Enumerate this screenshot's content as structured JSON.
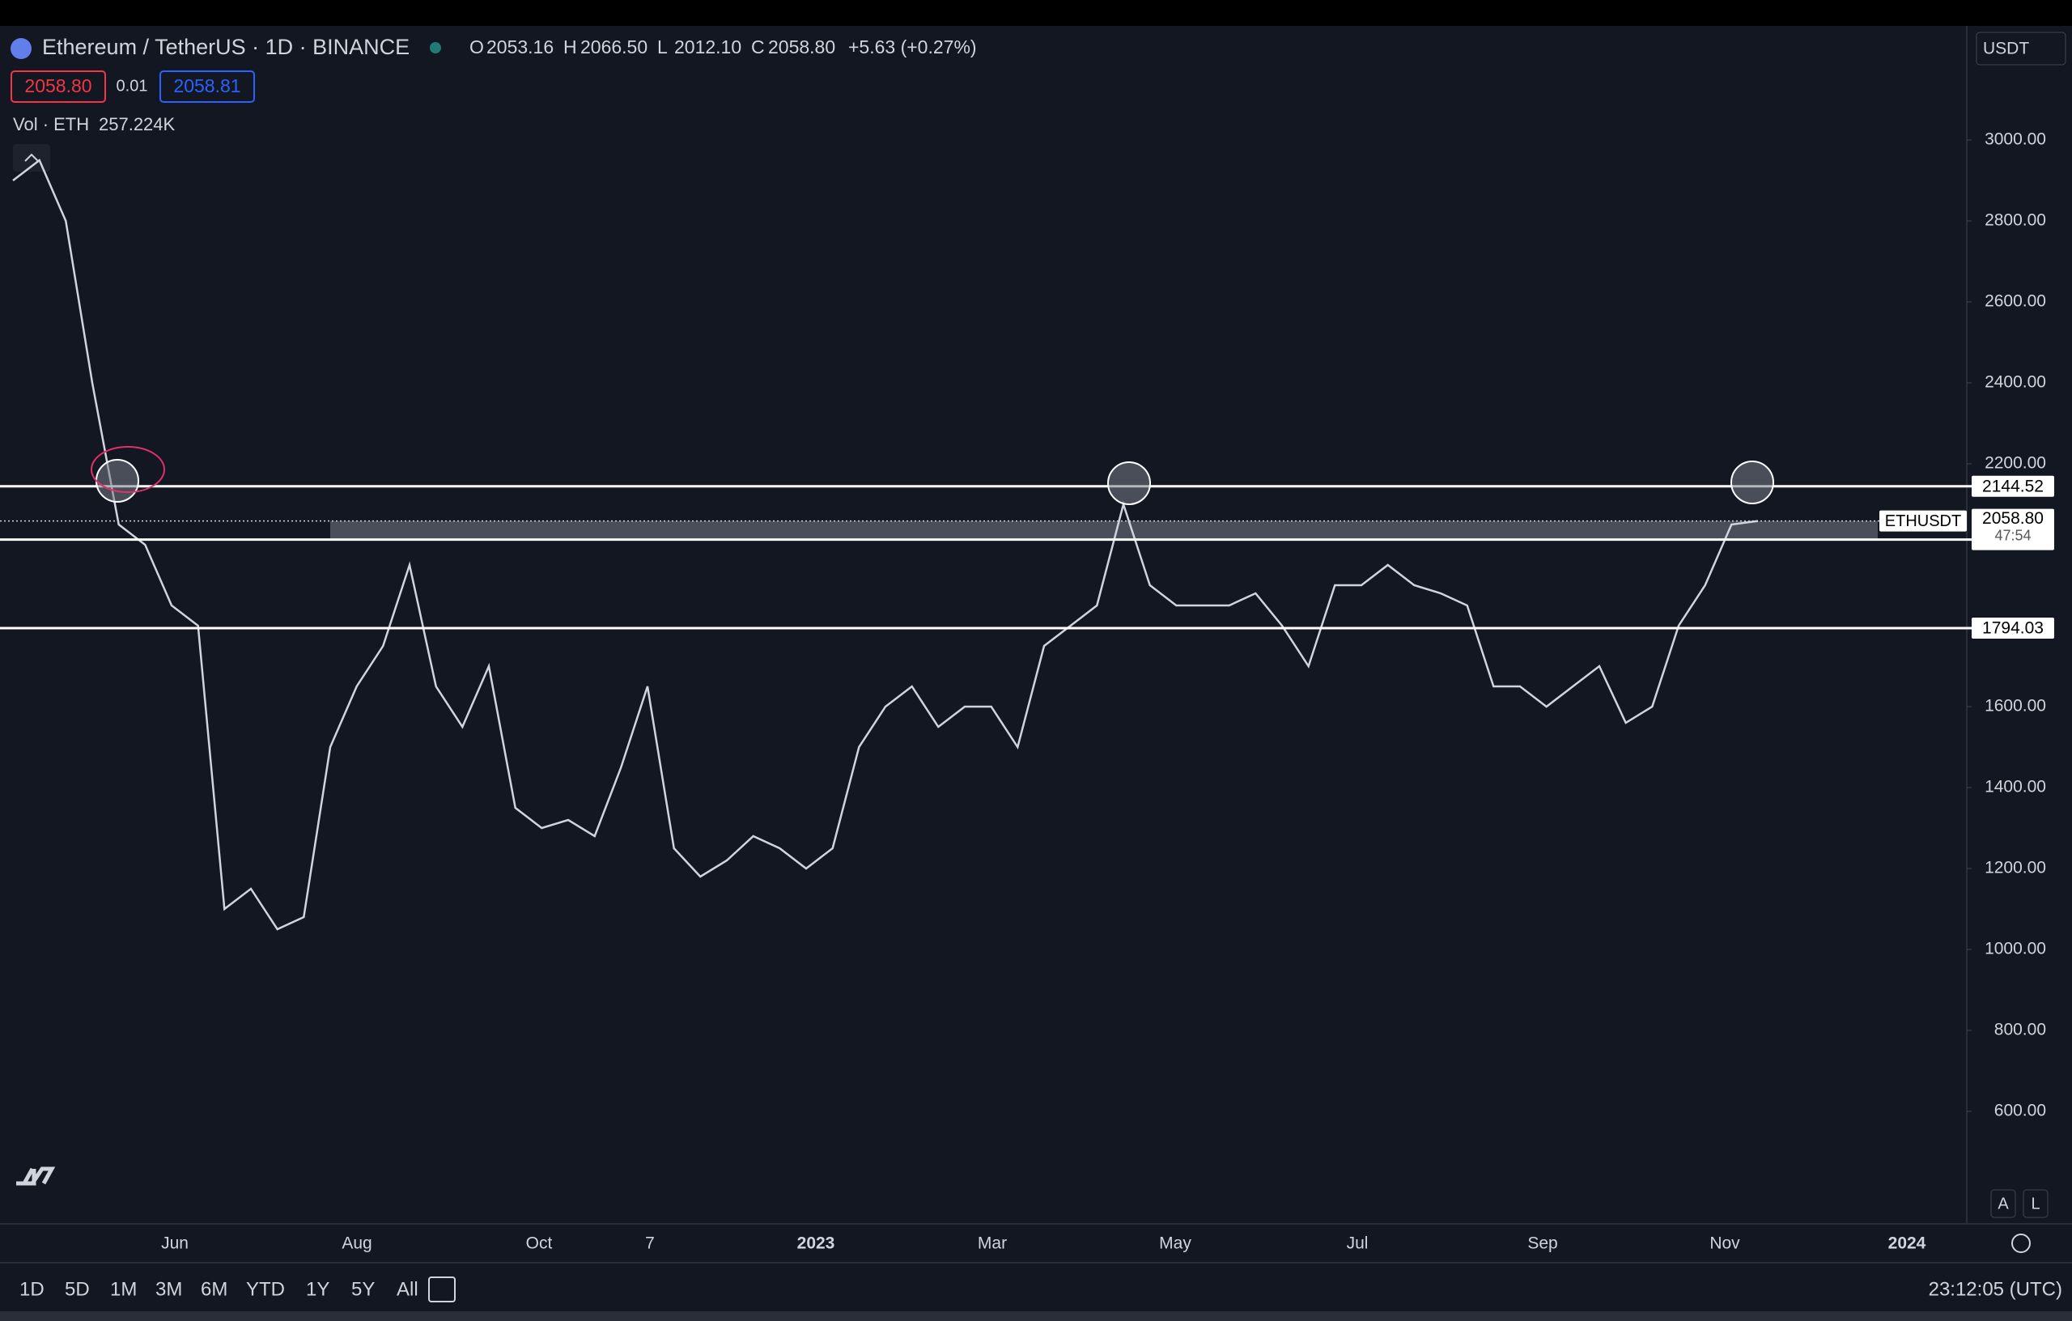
{
  "header": {
    "symbol": "Ethereum / TetherUS · 1D · BINANCE",
    "ohlc": [
      {
        "key": "O",
        "value": "2053.16"
      },
      {
        "key": "H",
        "value": "2066.50"
      },
      {
        "key": "L",
        "value": "2012.10"
      },
      {
        "key": "C",
        "value": "2058.80"
      }
    ],
    "change": "+5.63 (+0.27%)",
    "sell": "2058.80",
    "spread": "0.01",
    "buy": "2058.81",
    "volume_label": "Vol · ETH",
    "volume": "257.224K",
    "currency": "USDT"
  },
  "chart": {
    "type": "line",
    "symbol": "ETHUSDT",
    "color": "#d1d4dc",
    "values": [
      2900,
      2950,
      2800,
      2400,
      2050,
      2000,
      1850,
      1800,
      1100,
      1150,
      1050,
      1080,
      1500,
      1650,
      1750,
      1950,
      1650,
      1550,
      1700,
      1350,
      1300,
      1320,
      1280,
      1450,
      1650,
      1250,
      1180,
      1220,
      1280,
      1250,
      1200,
      1250,
      1500,
      1600,
      1650,
      1550,
      1600,
      1600,
      1500,
      1750,
      1800,
      1850,
      2100,
      1900,
      1850,
      1850,
      1850,
      1880,
      1800,
      1700,
      1900,
      1900,
      1950,
      1900,
      1880,
      1850,
      1650,
      1650,
      1600,
      1650,
      1700,
      1560,
      1600,
      1800,
      1900,
      2050,
      2058.8
    ],
    "ylim": [
      322,
      3282
    ],
    "yticks": [
      {
        "value": 600,
        "label": "600.00"
      },
      {
        "value": 800,
        "label": "800.00"
      },
      {
        "value": 1000,
        "label": "1000.00"
      },
      {
        "value": 1200,
        "label": "1200.00"
      },
      {
        "value": 1400,
        "label": "1400.00"
      },
      {
        "value": 1600,
        "label": "1600.00"
      },
      {
        "value": 2200,
        "label": "2200.00"
      },
      {
        "value": 2400,
        "label": "2400.00"
      },
      {
        "value": 2600,
        "label": "2600.00"
      },
      {
        "value": 2800,
        "label": "2800.00"
      },
      {
        "value": 3000,
        "label": "3000.00"
      }
    ],
    "levels": [
      2144.52,
      2012.83,
      1794.03
    ],
    "last_price": {
      "value": 2058.8,
      "label": "2058.80"
    },
    "countdown": "47:54",
    "xticks": [
      "Jun",
      "Aug",
      "Oct",
      "7",
      "2023",
      "Mar",
      "May",
      "Jul",
      "Sep",
      "Nov",
      "2024"
    ]
  },
  "toolbar": {
    "ranges": [
      "1D",
      "5D",
      "1M",
      "3M",
      "6M",
      "YTD",
      "1Y",
      "5Y",
      "All"
    ],
    "clock": "23:12:05 (UTC)",
    "scale_buttons": [
      "A",
      "L"
    ]
  }
}
